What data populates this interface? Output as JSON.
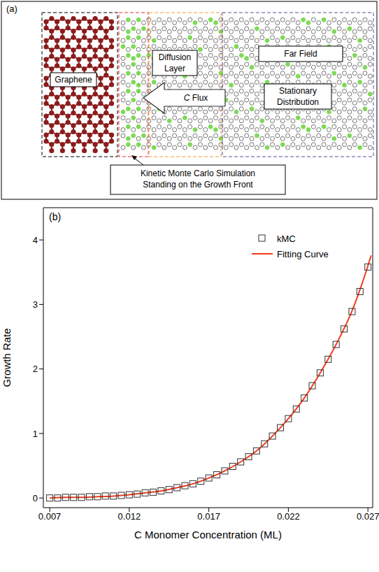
{
  "diagram": {
    "panel_label": "(a)",
    "graphene": "Graphene",
    "diffusion_layer": [
      "Diffusion",
      "Layer"
    ],
    "far_field": "Far Field",
    "flux": [
      "C",
      "Flux"
    ],
    "stationary": [
      "Stationary",
      "Distribution"
    ],
    "kmc_note": [
      "Kinetic Monte Carlo Simulation",
      "Standing on the Growth Front"
    ]
  },
  "chart_data": {
    "type": "scatter",
    "title": "(b)",
    "x_label": "C Monomer Concentration (ML)",
    "y_label": "Growth Rate",
    "xlim": [
      0.0066,
      0.0273
    ],
    "xticks": [
      0.007,
      0.012,
      0.017,
      0.022,
      0.027
    ],
    "ylim": [
      -0.15,
      4.5
    ],
    "yticks": [
      0,
      1,
      2,
      3,
      4
    ],
    "grid": false,
    "legend": "upper right",
    "series": [
      {
        "name": "kMC",
        "type": "scatter",
        "marker": "square",
        "color": "#333333",
        "x": [
          0.007,
          0.0075,
          0.008,
          0.0085,
          0.009,
          0.0095,
          0.01,
          0.0105,
          0.011,
          0.0115,
          0.012,
          0.0125,
          0.013,
          0.0135,
          0.014,
          0.0145,
          0.015,
          0.0155,
          0.016,
          0.0165,
          0.017,
          0.0175,
          0.018,
          0.0185,
          0.019,
          0.0195,
          0.02,
          0.0205,
          0.021,
          0.0215,
          0.022,
          0.0225,
          0.023,
          0.0235,
          0.024,
          0.0245,
          0.025,
          0.0255,
          0.026,
          0.0265,
          0.027
        ],
        "values": [
          0.0,
          0.0,
          0.01,
          0.01,
          0.01,
          0.02,
          0.02,
          0.03,
          0.03,
          0.04,
          0.05,
          0.06,
          0.08,
          0.09,
          0.11,
          0.13,
          0.16,
          0.19,
          0.22,
          0.26,
          0.31,
          0.36,
          0.42,
          0.49,
          0.56,
          0.64,
          0.73,
          0.84,
          0.96,
          1.09,
          1.23,
          1.38,
          1.55,
          1.74,
          1.94,
          2.15,
          2.38,
          2.62,
          2.89,
          3.2,
          3.58
        ]
      },
      {
        "name": "Fitting Curve",
        "type": "line",
        "line_style": "solid",
        "color": "#f03c1e",
        "x": [
          0.007,
          0.008,
          0.009,
          0.01,
          0.011,
          0.012,
          0.013,
          0.014,
          0.015,
          0.016,
          0.017,
          0.018,
          0.019,
          0.02,
          0.021,
          0.022,
          0.023,
          0.024,
          0.025,
          0.026,
          0.027,
          0.0272
        ],
        "values": [
          0.0,
          0.01,
          0.01,
          0.02,
          0.03,
          0.05,
          0.08,
          0.11,
          0.16,
          0.22,
          0.31,
          0.42,
          0.56,
          0.73,
          0.96,
          1.23,
          1.55,
          1.94,
          2.38,
          2.9,
          3.6,
          3.76
        ]
      }
    ]
  }
}
